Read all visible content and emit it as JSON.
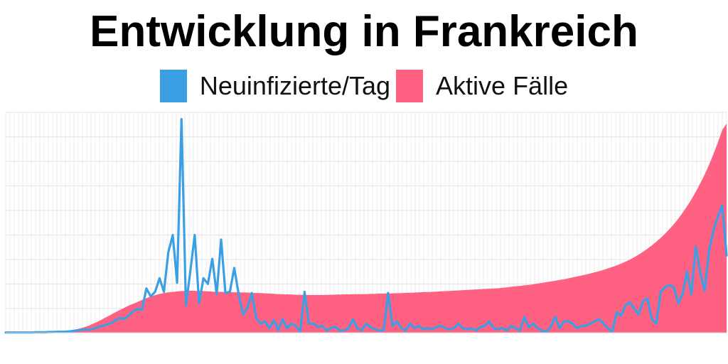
{
  "chart_data": {
    "type": "area",
    "title": "Entwicklung in Frankreich",
    "xlabel": "",
    "ylabel": "",
    "grid": true,
    "legend_position": "top-center",
    "series": [
      {
        "name": "Neuinfizierte/Tag",
        "chart_type": "line",
        "color": "#3b9fe3",
        "values": [
          0.1,
          0.1,
          0.1,
          0.1,
          0.1,
          0.1,
          0.1,
          0.2,
          0.2,
          0.2,
          0.3,
          0.3,
          0.4,
          0.4,
          0.5,
          0.7,
          1,
          1.2,
          1.5,
          1.3,
          1.8,
          2.5,
          3,
          3.6,
          4.3,
          5.5,
          6.5,
          6,
          7.5,
          9.5,
          10.5,
          10,
          19.5,
          16,
          18,
          24,
          18,
          35.5,
          43,
          22,
          94,
          12,
          27,
          43,
          13,
          24,
          21.5,
          32.5,
          17,
          41,
          17.5,
          18,
          28.5,
          17,
          8,
          11,
          17.5,
          6.5,
          4,
          5,
          2,
          5.5,
          1,
          6,
          2,
          4,
          3,
          0.5,
          18,
          4,
          4,
          2.5,
          3,
          1,
          2,
          2.5,
          1,
          1,
          2,
          6,
          2,
          1,
          4,
          2.5,
          1.5,
          1,
          1,
          17.5,
          3,
          5,
          2,
          1,
          4,
          2,
          3,
          1.5,
          2,
          1.5,
          2.5,
          3,
          2,
          1.5,
          2,
          4,
          2,
          1.5,
          2,
          1,
          2.5,
          3,
          5,
          2,
          1.5,
          2,
          1,
          3,
          2,
          1,
          7,
          2.5,
          4,
          2,
          1,
          0.5,
          2.5,
          7,
          2,
          5,
          5,
          4,
          2,
          3,
          3,
          4,
          5,
          6,
          4,
          2,
          0.5,
          9,
          7.5,
          12,
          13.5,
          10.5,
          8,
          14,
          15,
          6,
          4,
          18,
          20,
          21,
          20,
          13,
          17,
          27,
          17,
          38,
          26.5,
          18.5,
          36,
          45,
          51,
          56,
          34
        ],
        "peak": 94
      },
      {
        "name": "Aktive Fälle",
        "chart_type": "area",
        "color": "#ff6183",
        "values": [
          0.1,
          0.1,
          0.1,
          0.1,
          0.1,
          0.1,
          0.1,
          0.1,
          0.1,
          0.2,
          0.2,
          0.3,
          0.4,
          0.5,
          0.7,
          0.9,
          1.2,
          1.5,
          1.9,
          2.4,
          3.1,
          3.9,
          4.7,
          5.6,
          6.6,
          7.5,
          8.5,
          9.5,
          10.4,
          11.3,
          12.2,
          12.9,
          13.7,
          14.5,
          15.2,
          16,
          16.5,
          17,
          17.4,
          17.7,
          17.9,
          18.1,
          18.3,
          18.4,
          18.5,
          18.5,
          18.4,
          18.4,
          18.3,
          18.2,
          18.1,
          18,
          18,
          17.9,
          17.9,
          17.8,
          17.8,
          17.7,
          17.7,
          17.6,
          17.5,
          17.5,
          17.4,
          17.3,
          17.2,
          17.1,
          17,
          16.9,
          16.9,
          16.8,
          16.7,
          16.7,
          16.6,
          16.6,
          16.6,
          16.6,
          16.6,
          16.6,
          16.7,
          16.7,
          16.8,
          16.8,
          16.9,
          16.9,
          17,
          17,
          17,
          17,
          17.1,
          17.1,
          17.2,
          17.2,
          17.3,
          17.3,
          17.4,
          17.4,
          17.5,
          17.6,
          17.6,
          17.7,
          17.8,
          17.9,
          17.9,
          18,
          18.1,
          18.2,
          18.3,
          18.4,
          18.5,
          18.6,
          18.7,
          18.8,
          18.9,
          19,
          19.1,
          19.2,
          19.3,
          19.4,
          19.5,
          19.6,
          19.8,
          20,
          20.2,
          20.4,
          20.6,
          20.8,
          21,
          21.2,
          21.5,
          21.8,
          22.1,
          22.4,
          22.7,
          23,
          23.3,
          23.6,
          24,
          24.4,
          24.8,
          25.2,
          25.6,
          26,
          26.5,
          27,
          27.5,
          28.1,
          28.7,
          29.3,
          30,
          30.8,
          31.6,
          32.5,
          33.5,
          34.6,
          35.8,
          37.1,
          38.5,
          40,
          41.6,
          43.3,
          45.2,
          47.2,
          49.4,
          51.8,
          54.4,
          57.2,
          60.2,
          63.5,
          67,
          70.8,
          74.9,
          79.4,
          84.2,
          89.4,
          92
        ]
      }
    ],
    "ylim": [
      0,
      97
    ]
  }
}
